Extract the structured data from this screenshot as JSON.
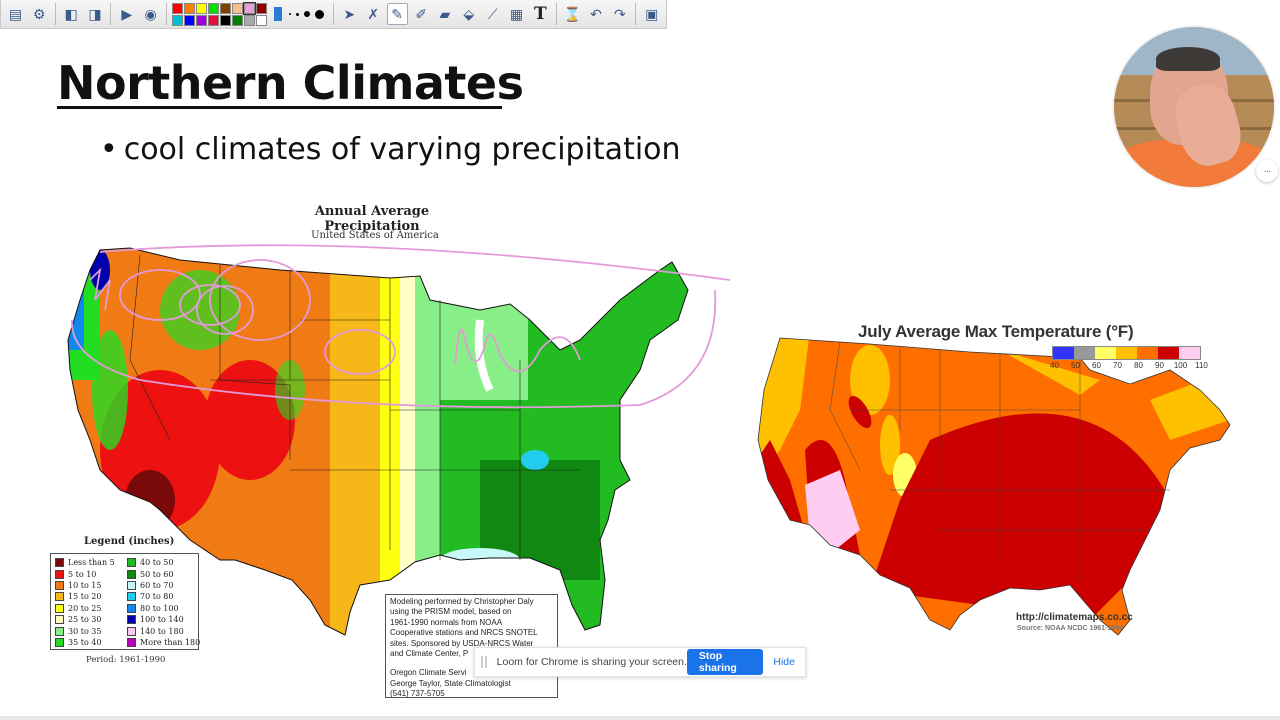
{
  "toolbar": {
    "tools": [
      {
        "name": "open-file-icon",
        "glyph": "▤"
      },
      {
        "name": "desktop-settings-icon",
        "glyph": "⚙"
      },
      {
        "name": "previous-page-icon",
        "glyph": "◧"
      },
      {
        "name": "next-page-icon",
        "glyph": "◨"
      },
      {
        "name": "play-icon",
        "glyph": "▶"
      },
      {
        "name": "globe-icon",
        "glyph": "◉"
      }
    ],
    "palette": [
      "#ff0000",
      "#ff8000",
      "#ffff00",
      "#00e000",
      "#804000",
      "#f5c08a",
      "#e8a0d8",
      "#900000",
      "#00c0d8",
      "#0000ff",
      "#a000e0",
      "#e0103a",
      "#000000",
      "#008000",
      "#aaaaaa",
      "#ffffff"
    ],
    "selected_color_index": 6,
    "draw_tools": [
      {
        "name": "pointer-icon",
        "glyph": "➤",
        "active": false
      },
      {
        "name": "tools-icon",
        "glyph": "✗",
        "active": false
      },
      {
        "name": "pen-icon",
        "glyph": "✎",
        "active": true
      },
      {
        "name": "highlighter-icon",
        "glyph": "✐",
        "active": false
      },
      {
        "name": "eraser-icon",
        "glyph": "▰",
        "active": false
      },
      {
        "name": "fill-bucket-icon",
        "glyph": "⬙",
        "active": false
      },
      {
        "name": "line-tool-icon",
        "glyph": "⟋",
        "active": false
      },
      {
        "name": "clapperboard-icon",
        "glyph": "▦",
        "active": false
      },
      {
        "name": "text-tool-icon",
        "glyph": "T",
        "active": false
      }
    ],
    "history_tools": [
      {
        "name": "clear-icon",
        "glyph": "⌛"
      },
      {
        "name": "undo-icon",
        "glyph": "↶"
      },
      {
        "name": "redo-icon",
        "glyph": "↷"
      },
      {
        "name": "menu-icon",
        "glyph": "▣"
      }
    ]
  },
  "slide": {
    "title": "Northern Climates",
    "bullet": "cool climates of varying precipitation",
    "bullet_mark": "•"
  },
  "precip_map": {
    "title": "Annual Average Precipitation",
    "subtitle": "United States of America",
    "legend_title": "Legend (inches)",
    "legend": [
      {
        "label": "Less than 5",
        "color": "#7a0a0a"
      },
      {
        "label": "5 to 10",
        "color": "#ee1111"
      },
      {
        "label": "10 to 15",
        "color": "#f07a14"
      },
      {
        "label": "15 to 20",
        "color": "#f5b818"
      },
      {
        "label": "20 to 25",
        "color": "#ffff10"
      },
      {
        "label": "25 to 30",
        "color": "#ffffc8"
      },
      {
        "label": "30 to 35",
        "color": "#88ee88"
      },
      {
        "label": "35 to 40",
        "color": "#22dd22"
      },
      {
        "label": "40 to 50",
        "color": "#22bb22"
      },
      {
        "label": "50 to 60",
        "color": "#118811"
      },
      {
        "label": "60 to 70",
        "color": "#c8f8f8"
      },
      {
        "label": "70 to 80",
        "color": "#22ccee"
      },
      {
        "label": "80 to 100",
        "color": "#1188ee"
      },
      {
        "label": "100 to 140",
        "color": "#0000aa"
      },
      {
        "label": "140 to 180",
        "color": "#f8c8f0"
      },
      {
        "label": "More than 180",
        "color": "#bb00bb"
      }
    ],
    "period": "Period: 1961-1990",
    "credit_lines": [
      "Modeling performed by Christopher Daly",
      "using the PRISM model, based on",
      "1961-1990 normals from NOAA",
      "Cooperative stations and NRCS SNOTEL",
      "sites.  Sponsored by USDA-NRCS Water",
      "and Climate Center, P"
    ],
    "credit_lines_2": [
      "Oregon Climate Servi",
      "George Taylor, State Climatologist",
      "(541) 737-5705"
    ]
  },
  "temp_map": {
    "title": "July Average Max Temperature (°F)",
    "scale_colors": [
      "#3333ff",
      "#999999",
      "#ffff66",
      "#ffc000",
      "#ff6f00",
      "#cc0000",
      "#ffccf2"
    ],
    "scale_ticks": [
      "40",
      "50",
      "60",
      "70",
      "80",
      "90",
      "100",
      "110"
    ],
    "url": "http://climatemaps.co.cc",
    "source": "Source: NOAA NCDC 1961-1990"
  },
  "webcam": {
    "menu_label": "···"
  },
  "share_bar": {
    "message": "Loom for Chrome is sharing your screen.",
    "stop_label": "Stop sharing",
    "hide_label": "Hide"
  }
}
